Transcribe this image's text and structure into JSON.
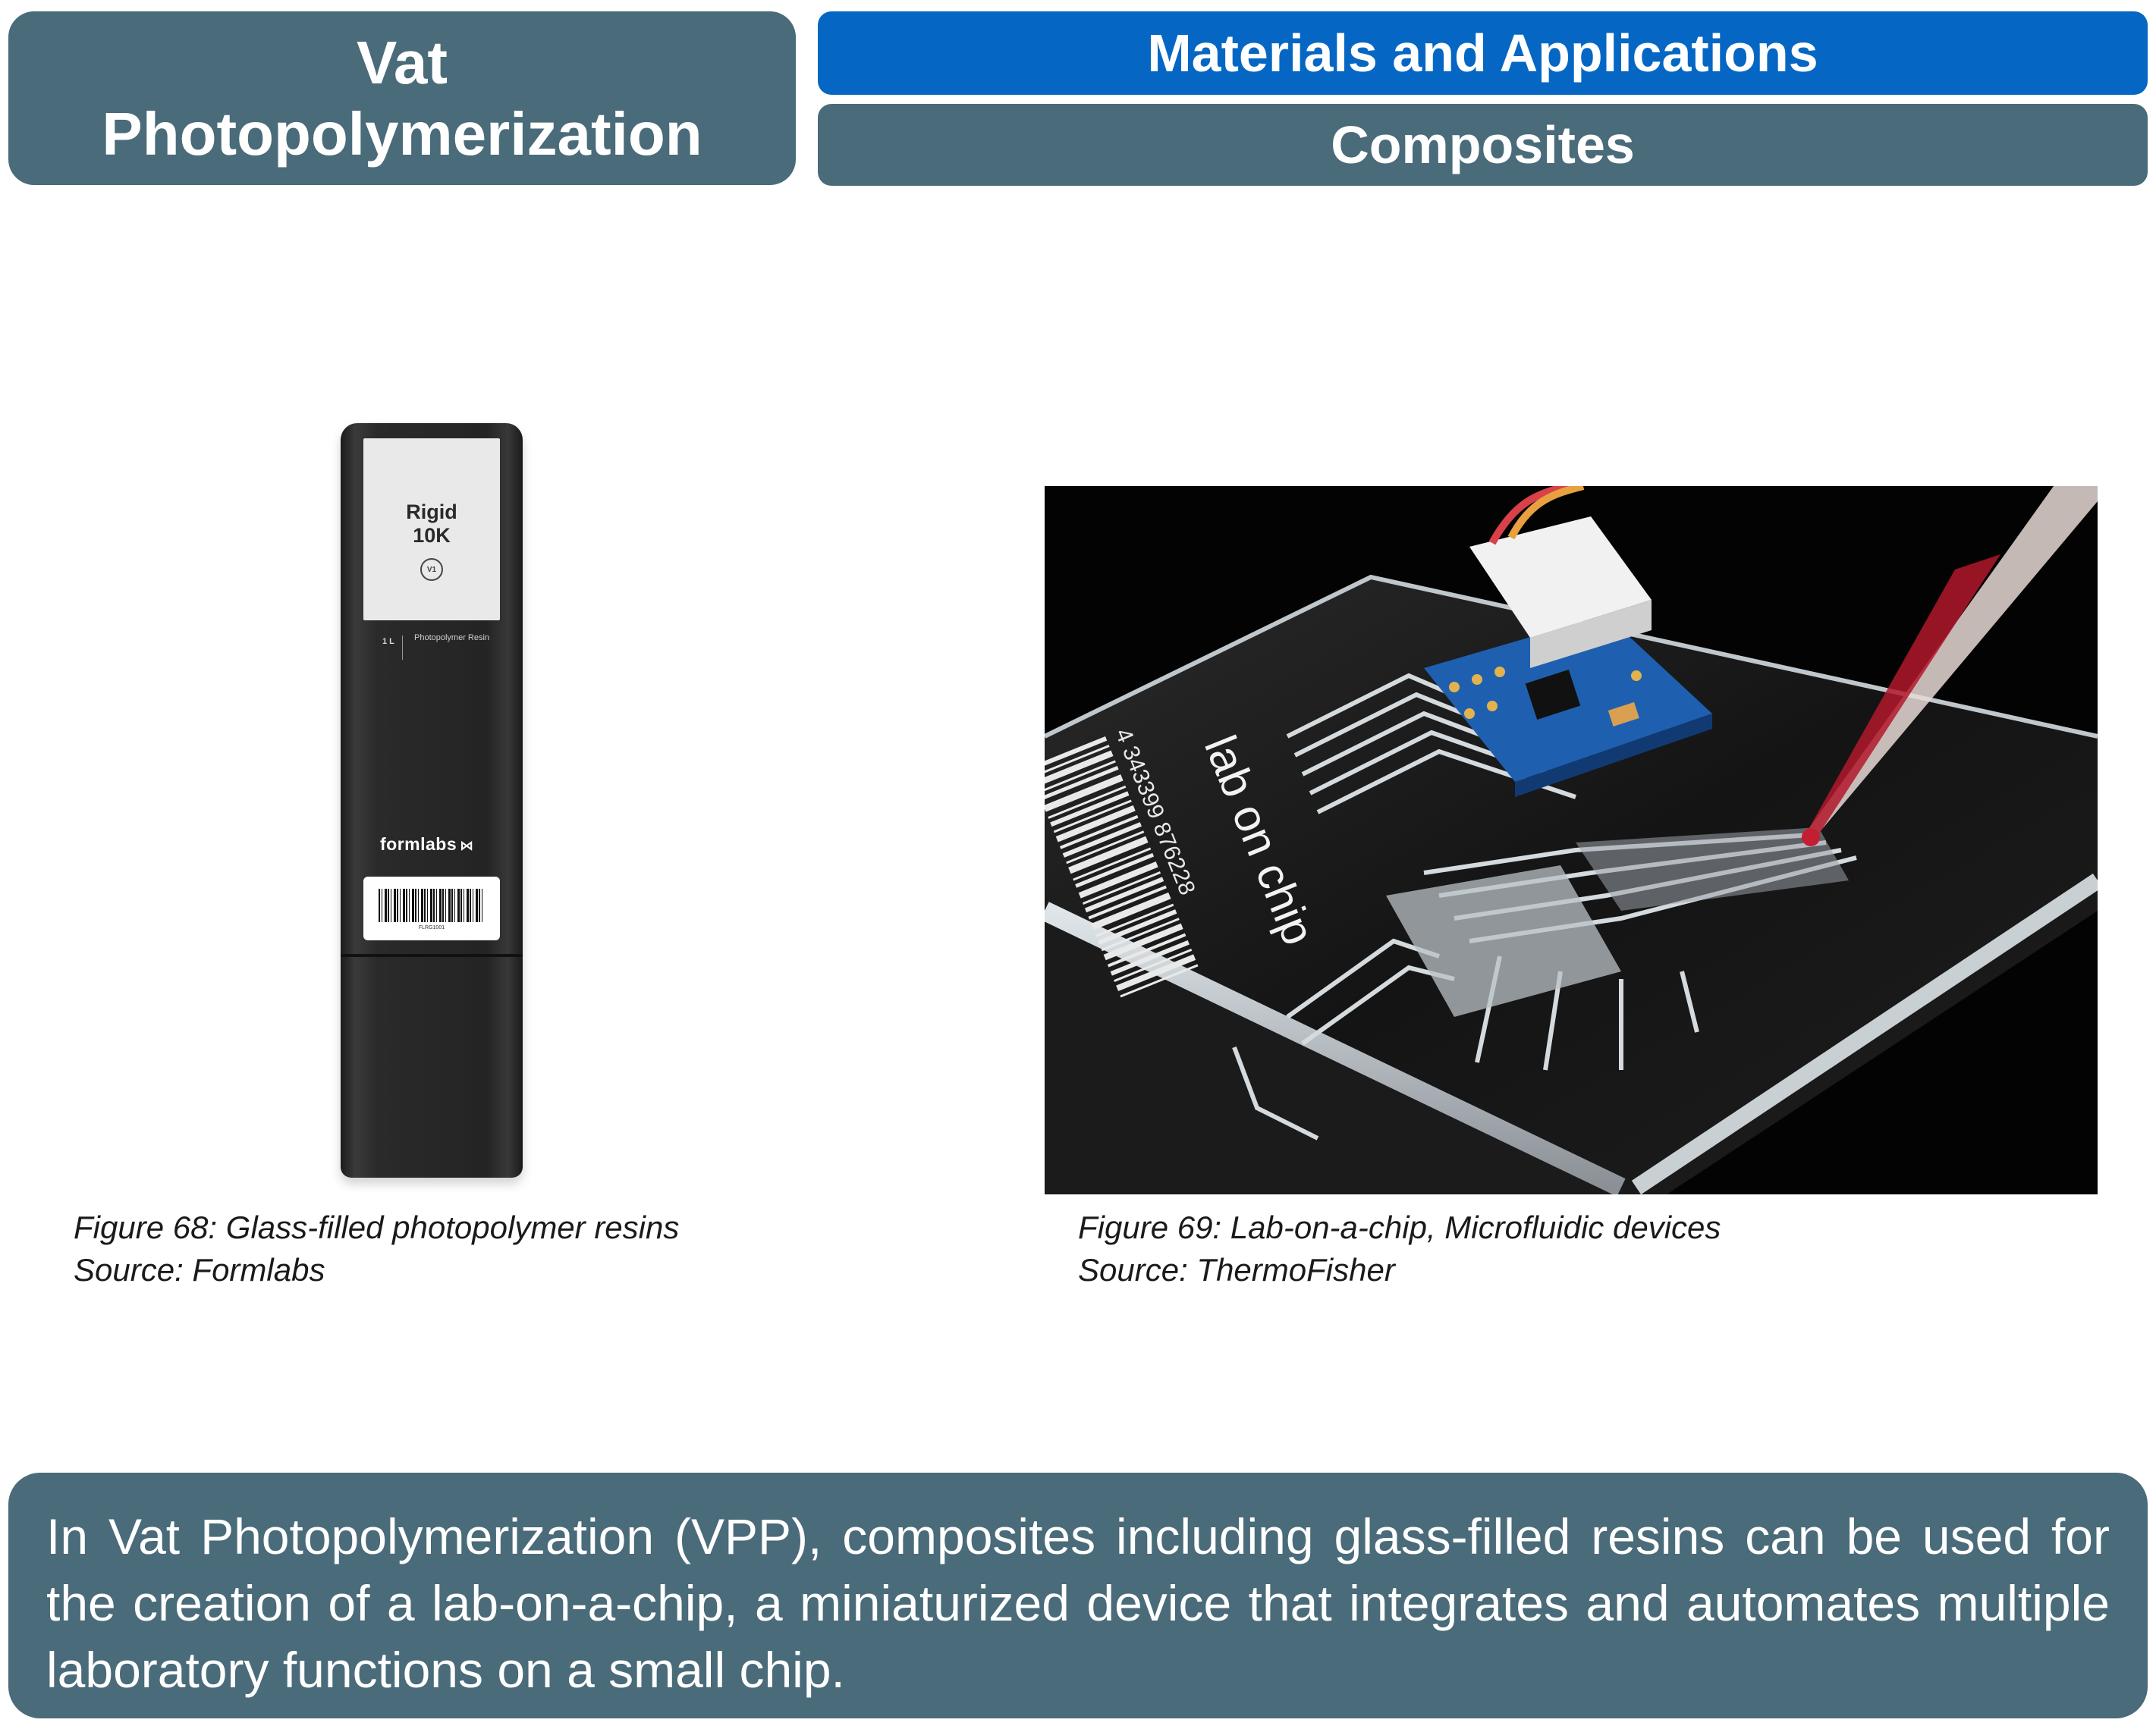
{
  "header": {
    "title_line1": "Vat",
    "title_line2": "Photopolymerization",
    "category": "Materials and Applications",
    "subcategory": "Composites"
  },
  "figure68": {
    "product": {
      "name": "Rigid 10K",
      "version": "V1",
      "volume": "1 L",
      "type": "Photopolymer Resin",
      "brand": "formlabs",
      "code": "FLRG1001"
    },
    "caption": "Figure 68: Glass-filled photopolymer resins",
    "source": "Source: Formlabs"
  },
  "figure69": {
    "chip_text": "lab on chip",
    "barcode_number": "4 343399 876228",
    "caption": "Figure 69: Lab-on-a-chip, Microfluidic devices",
    "source": "Source: ThermoFisher"
  },
  "summary": "In Vat Photopolymerization (VPP), composites including glass-filled resins can be used for the creation of a lab-on-a-chip, a miniaturized device that integrates and automates multiple laboratory functions on a small chip.",
  "colors": {
    "header_blue": "#0567c3",
    "slate": "#4a6b79"
  }
}
